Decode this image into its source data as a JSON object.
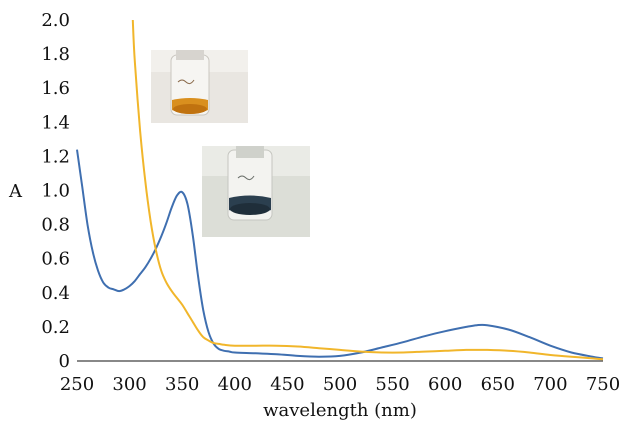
{
  "chart_data": {
    "type": "line",
    "title": "",
    "xlabel": "wavelength (nm)",
    "ylabel": "A",
    "xlim": [
      250,
      750
    ],
    "ylim": [
      0,
      2.0
    ],
    "xticks": [
      250,
      300,
      350,
      400,
      450,
      500,
      550,
      600,
      650,
      700,
      750
    ],
    "yticks": [
      "0",
      "0.2",
      "0.4",
      "0.6",
      "0.8",
      "1.0",
      "1.2",
      "1.4",
      "1.6",
      "1.8",
      "2.0"
    ],
    "grid": false,
    "legend": "none",
    "series": [
      {
        "color": "#3f6fb0",
        "x": [
          250,
          255,
          260,
          265,
          270,
          275,
          280,
          285,
          290,
          295,
          300,
          305,
          310,
          315,
          320,
          325,
          330,
          335,
          340,
          345,
          350,
          355,
          360,
          365,
          370,
          375,
          380,
          385,
          390,
          395,
          400,
          420,
          440,
          460,
          480,
          500,
          520,
          540,
          560,
          580,
          600,
          620,
          630,
          640,
          660,
          680,
          700,
          720,
          740,
          750
        ],
        "y": [
          1.24,
          1.02,
          0.8,
          0.64,
          0.53,
          0.46,
          0.43,
          0.42,
          0.41,
          0.42,
          0.44,
          0.47,
          0.51,
          0.55,
          0.6,
          0.66,
          0.73,
          0.81,
          0.9,
          0.97,
          0.99,
          0.92,
          0.74,
          0.5,
          0.3,
          0.17,
          0.1,
          0.07,
          0.06,
          0.055,
          0.05,
          0.045,
          0.04,
          0.03,
          0.025,
          0.03,
          0.05,
          0.08,
          0.11,
          0.145,
          0.175,
          0.2,
          0.21,
          0.21,
          0.185,
          0.14,
          0.09,
          0.05,
          0.025,
          0.015
        ]
      },
      {
        "color": "#f1b62b",
        "x": [
          303,
          305,
          310,
          315,
          320,
          325,
          330,
          335,
          340,
          345,
          350,
          355,
          360,
          365,
          370,
          375,
          380,
          385,
          390,
          400,
          420,
          440,
          460,
          480,
          500,
          520,
          540,
          560,
          580,
          600,
          620,
          640,
          660,
          680,
          700,
          720,
          740,
          750
        ],
        "y": [
          2.0,
          1.75,
          1.35,
          1.05,
          0.82,
          0.65,
          0.53,
          0.46,
          0.41,
          0.37,
          0.33,
          0.28,
          0.23,
          0.18,
          0.14,
          0.12,
          0.105,
          0.1,
          0.095,
          0.09,
          0.09,
          0.09,
          0.085,
          0.075,
          0.065,
          0.055,
          0.05,
          0.05,
          0.055,
          0.06,
          0.065,
          0.065,
          0.06,
          0.05,
          0.035,
          0.025,
          0.015,
          0.01
        ]
      }
    ]
  }
}
